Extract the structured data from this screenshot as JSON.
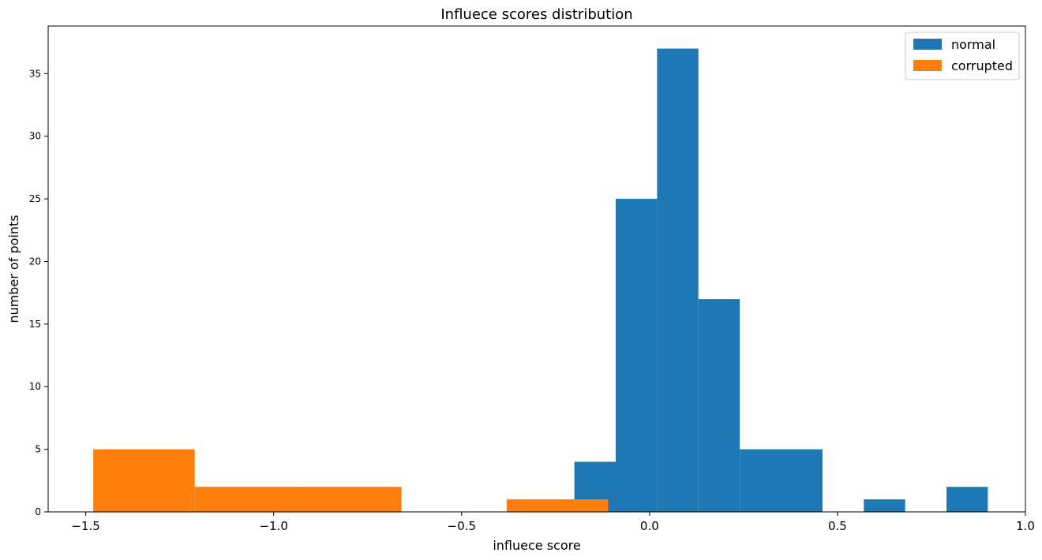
{
  "chart_data": {
    "type": "bar",
    "title": "Influece scores distribution",
    "xlabel": "influece score",
    "ylabel": "number of points",
    "xlim": [
      -1.6,
      1.0
    ],
    "ylim": [
      0,
      38.8
    ],
    "xticks": [
      {
        "value": -1.5,
        "label": "−1.5"
      },
      {
        "value": -1.0,
        "label": "−1.0"
      },
      {
        "value": -0.5,
        "label": "−0.5"
      },
      {
        "value": 0.0,
        "label": "0.0"
      },
      {
        "value": 0.5,
        "label": "0.5"
      },
      {
        "value": 1.0,
        "label": "1.0"
      }
    ],
    "yticks": [
      {
        "value": 0,
        "label": "0"
      },
      {
        "value": 5,
        "label": "5"
      },
      {
        "value": 10,
        "label": "10"
      },
      {
        "value": 15,
        "label": "15"
      },
      {
        "value": 20,
        "label": "20"
      },
      {
        "value": 25,
        "label": "25"
      },
      {
        "value": 30,
        "label": "30"
      },
      {
        "value": 35,
        "label": "35"
      }
    ],
    "grid": false,
    "legend_position": "top-right",
    "series": [
      {
        "name": "normal",
        "color": "#1f77b4",
        "bins": [
          {
            "x0": -0.2,
            "x1": -0.09,
            "count": 4
          },
          {
            "x0": -0.09,
            "x1": 0.02,
            "count": 25
          },
          {
            "x0": 0.02,
            "x1": 0.13,
            "count": 37
          },
          {
            "x0": 0.13,
            "x1": 0.24,
            "count": 17
          },
          {
            "x0": 0.24,
            "x1": 0.35,
            "count": 5
          },
          {
            "x0": 0.35,
            "x1": 0.46,
            "count": 5
          },
          {
            "x0": 0.46,
            "x1": 0.57,
            "count": 0
          },
          {
            "x0": 0.57,
            "x1": 0.68,
            "count": 1
          },
          {
            "x0": 0.68,
            "x1": 0.79,
            "count": 0
          },
          {
            "x0": 0.79,
            "x1": 0.9,
            "count": 2
          }
        ]
      },
      {
        "name": "corrupted",
        "color": "#ff7f0e",
        "bins": [
          {
            "x0": -1.48,
            "x1": -1.21,
            "count": 5
          },
          {
            "x0": -1.21,
            "x1": -0.93,
            "count": 2
          },
          {
            "x0": -0.93,
            "x1": -0.66,
            "count": 2
          },
          {
            "x0": -0.66,
            "x1": -0.38,
            "count": 0
          },
          {
            "x0": -0.38,
            "x1": -0.11,
            "count": 1
          }
        ]
      }
    ]
  }
}
